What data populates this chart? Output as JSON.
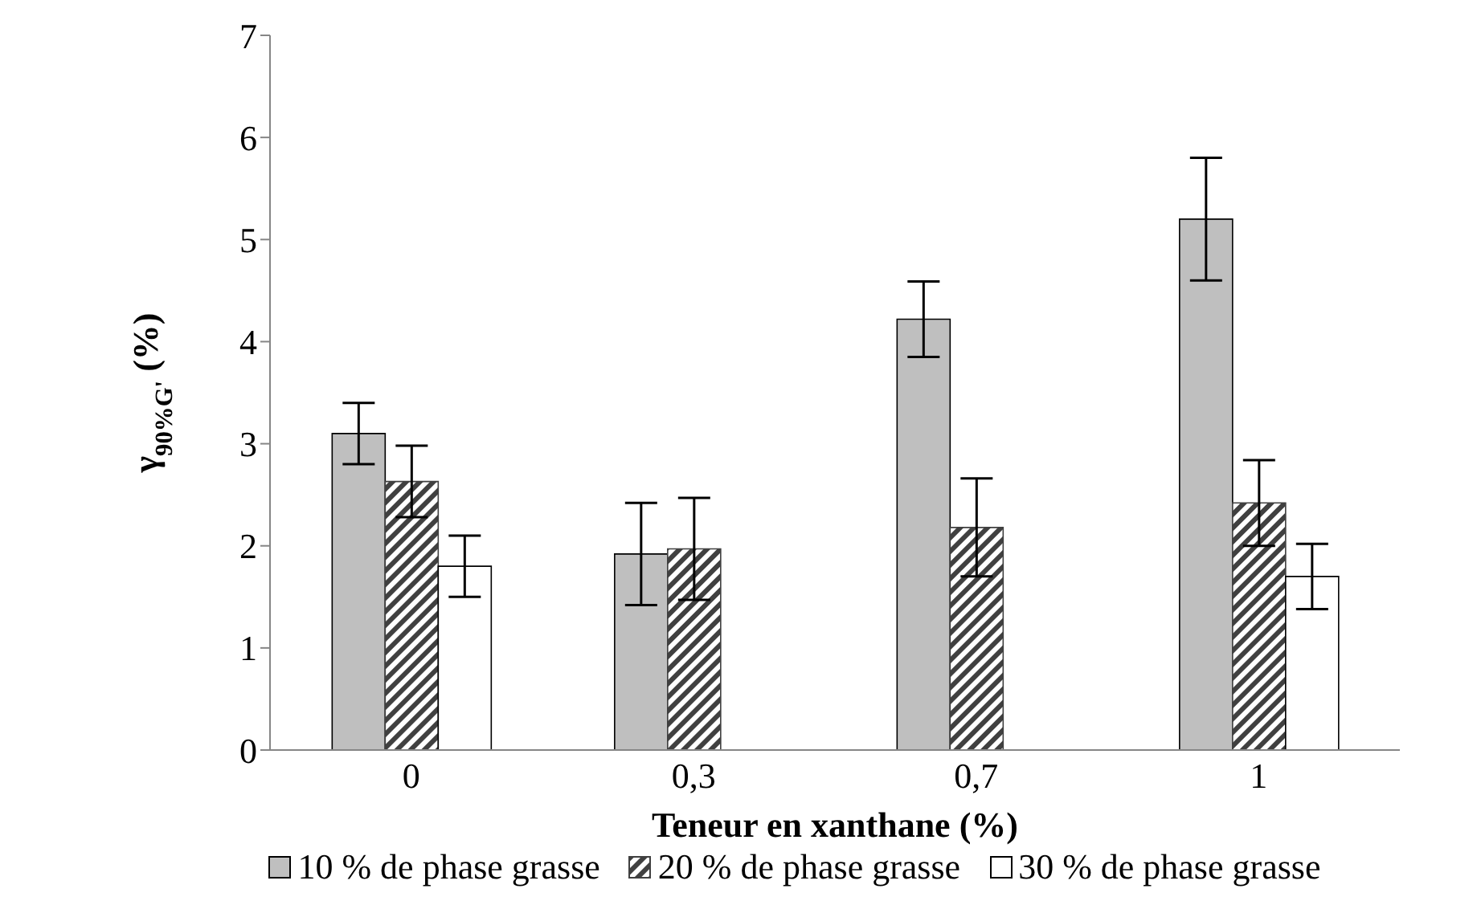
{
  "chart_data": {
    "type": "bar",
    "xlabel": "Teneur en xanthane (%)",
    "ylabel": "γ$_{90%G'}$ (%)",
    "categories": [
      "0",
      "0,3",
      "0,7",
      "1"
    ],
    "series": [
      {
        "name": "10 % de phase grasse",
        "color": "#bfbfbf",
        "values": [
          3.1,
          1.92,
          4.22,
          5.2
        ],
        "errors": [
          0.3,
          0.5,
          0.37,
          0.6
        ]
      },
      {
        "name": "20 % de phase grasse",
        "color": "#404040",
        "values": [
          2.63,
          1.97,
          2.18,
          2.42
        ],
        "errors": [
          0.35,
          0.5,
          0.48,
          0.42
        ]
      },
      {
        "name": "30 % de phase grasse",
        "color": "#ffffff",
        "values": [
          1.8,
          null,
          null,
          1.7
        ],
        "errors": [
          0.3,
          null,
          null,
          0.32
        ]
      }
    ],
    "ylim": [
      0,
      7
    ],
    "yticks": [
      0,
      1,
      2,
      3,
      4,
      5,
      6,
      7
    ],
    "grid": false,
    "legend": "bottom"
  }
}
